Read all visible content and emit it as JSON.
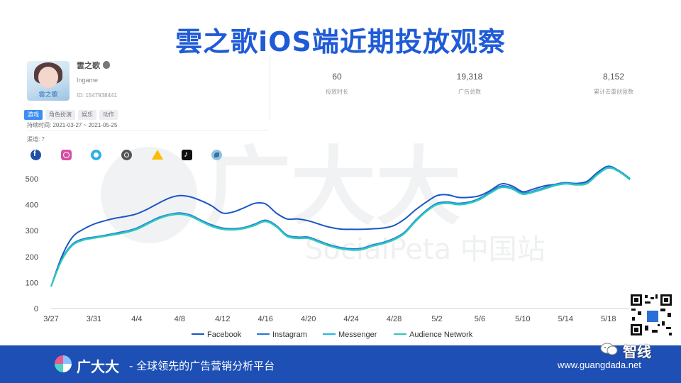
{
  "header": {
    "title": "雲之歌iOS端近期投放观察"
  },
  "watermark": {
    "brand": "广大大",
    "product": "SocialPeta 中国站"
  },
  "app": {
    "name": "雲之歌",
    "platform_icon": "apple-icon",
    "developer": "Ingame",
    "id_text": "ID: 1547938441",
    "icon_text": "雲之歌",
    "tags": [
      "游戏",
      "角色扮演",
      "娱乐",
      "动作"
    ],
    "active_tag": 0,
    "duration_text": "持续时间: 2021-03-27 ~ 2021-05-25",
    "channels_label": "渠道: 7",
    "channels": [
      "facebook-icon",
      "instagram-icon",
      "messenger-icon",
      "audience-network-icon",
      "google-ads-icon",
      "tiktok-icon",
      "unity-icon"
    ]
  },
  "stats": [
    {
      "value": "60",
      "label": "投放时长"
    },
    {
      "value": "19,318",
      "label": "广告总数"
    },
    {
      "value": "8,152",
      "label": "累计去重创意数"
    }
  ],
  "chart_data": {
    "type": "line",
    "x": [
      "3/27",
      "3/28",
      "3/29",
      "3/30",
      "3/31",
      "4/1",
      "4/2",
      "4/3",
      "4/4",
      "4/5",
      "4/6",
      "4/7",
      "4/8",
      "4/9",
      "4/10",
      "4/11",
      "4/12",
      "4/13",
      "4/14",
      "4/15",
      "4/16",
      "4/17",
      "4/18",
      "4/19",
      "4/20",
      "4/21",
      "4/22",
      "4/23",
      "4/24",
      "4/25",
      "4/26",
      "4/27",
      "4/28",
      "4/29",
      "4/30",
      "5/1",
      "5/2",
      "5/3",
      "5/4",
      "5/5",
      "5/6",
      "5/7",
      "5/8",
      "5/9",
      "5/10",
      "5/11",
      "5/12",
      "5/13",
      "5/14",
      "5/15",
      "5/16",
      "5/17",
      "5/18",
      "5/19",
      "5/20"
    ],
    "tick_labels": [
      "3/27",
      "3/31",
      "4/4",
      "4/8",
      "4/12",
      "4/16",
      "4/20",
      "4/24",
      "4/28",
      "5/2",
      "5/6",
      "5/10",
      "5/14",
      "5/18"
    ],
    "yticks": [
      0,
      100,
      200,
      300,
      400,
      500
    ],
    "ylim": [
      0,
      560
    ],
    "grid": false,
    "legend_position": "bottom",
    "series": [
      {
        "name": "Facebook",
        "color": "#1a56c4",
        "values": [
          85,
          200,
          275,
          305,
          325,
          338,
          348,
          355,
          365,
          383,
          405,
          425,
          435,
          430,
          415,
          395,
          368,
          372,
          388,
          405,
          403,
          368,
          345,
          345,
          338,
          325,
          313,
          306,
          305,
          305,
          307,
          310,
          320,
          345,
          380,
          410,
          435,
          438,
          428,
          428,
          435,
          455,
          480,
          472,
          450,
          460,
          472,
          478,
          485,
          482,
          490,
          525,
          548,
          530,
          500
        ]
      },
      {
        "name": "Instagram",
        "color": "#2a73d8",
        "values": [
          85,
          190,
          248,
          268,
          275,
          282,
          290,
          298,
          310,
          330,
          350,
          362,
          368,
          360,
          340,
          322,
          310,
          308,
          312,
          325,
          340,
          320,
          283,
          275,
          275,
          260,
          245,
          235,
          230,
          232,
          245,
          255,
          270,
          295,
          340,
          378,
          405,
          410,
          405,
          410,
          425,
          450,
          472,
          465,
          445,
          452,
          465,
          478,
          485,
          480,
          485,
          520,
          545,
          530,
          500
        ]
      },
      {
        "name": "Messenger",
        "color": "#22b8dc",
        "values": [
          85,
          188,
          245,
          265,
          273,
          280,
          287,
          295,
          307,
          327,
          347,
          360,
          365,
          357,
          337,
          318,
          307,
          305,
          310,
          322,
          337,
          317,
          280,
          272,
          272,
          257,
          242,
          232,
          227,
          229,
          242,
          252,
          267,
          292,
          337,
          375,
          402,
          407,
          402,
          407,
          422,
          447,
          468,
          462,
          442,
          450,
          462,
          475,
          482,
          478,
          483,
          518,
          543,
          528,
          498
        ]
      },
      {
        "name": "Audience Network",
        "color": "#2fcab5",
        "values": [
          85,
          186,
          243,
          263,
          271,
          278,
          285,
          293,
          305,
          325,
          345,
          358,
          363,
          355,
          335,
          316,
          305,
          303,
          308,
          320,
          335,
          315,
          278,
          270,
          270,
          255,
          240,
          230,
          225,
          227,
          240,
          250,
          265,
          290,
          335,
          373,
          400,
          405,
          400,
          405,
          420,
          445,
          466,
          460,
          440,
          448,
          460,
          473,
          480,
          476,
          481,
          516,
          541,
          526,
          496
        ]
      }
    ]
  },
  "footer": {
    "brand": "广大大",
    "slogan": "- 全球领先的广告营销分析平台",
    "url": "www.guangdada.net",
    "wechat_name": "智线"
  }
}
